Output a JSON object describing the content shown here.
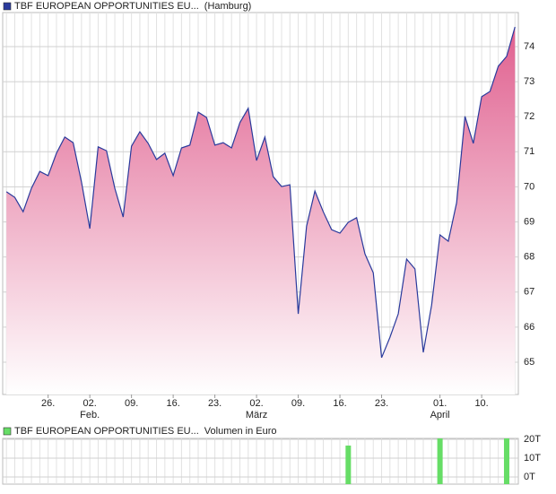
{
  "chart_data": [
    {
      "type": "area",
      "series_name": "TBF EUROPEAN OPPORTUNITIES EU...",
      "subtitle": "(Hamburg)",
      "color": "#2a3a9c",
      "fill_top": "#e0608f",
      "values": [
        69.86,
        69.7,
        69.29,
        69.96,
        70.44,
        70.32,
        70.96,
        71.42,
        71.26,
        70.14,
        68.81,
        71.14,
        71.03,
        69.96,
        69.14,
        71.16,
        71.57,
        71.24,
        70.78,
        70.96,
        70.32,
        71.11,
        71.19,
        72.13,
        71.98,
        71.19,
        71.26,
        71.11,
        71.83,
        72.24,
        70.75,
        71.42,
        70.29,
        70.01,
        70.06,
        66.38,
        68.88,
        69.88,
        69.29,
        68.78,
        68.68,
        68.99,
        69.12,
        68.09,
        67.55,
        65.13,
        65.71,
        66.38,
        67.94,
        67.66,
        65.28,
        66.63,
        68.63,
        68.45,
        69.55,
        72.01,
        71.24,
        72.57,
        72.72,
        73.44,
        73.72,
        74.56
      ],
      "xlim": [
        -0.45,
        61.4
      ],
      "ylim": [
        64.08,
        74.97
      ],
      "yticks": [
        65,
        66,
        67,
        68,
        69,
        70,
        71,
        72,
        73,
        74
      ],
      "xticks": [
        {
          "value": 5,
          "label": "26."
        },
        {
          "value": 10,
          "label": "02.",
          "month": "Feb."
        },
        {
          "value": 15,
          "label": "09."
        },
        {
          "value": 20,
          "label": "16."
        },
        {
          "value": 25,
          "label": "23."
        },
        {
          "value": 30,
          "label": "02.",
          "month": "März"
        },
        {
          "value": 35,
          "label": "09."
        },
        {
          "value": 40,
          "label": "16."
        },
        {
          "value": 45,
          "label": "23."
        },
        {
          "value": 52,
          "label": "01.",
          "month": "April"
        },
        {
          "value": 57,
          "label": "10."
        }
      ],
      "grid": true
    },
    {
      "type": "bar",
      "series_name": "TBF EUROPEAN OPPORTUNITIES EU...",
      "subtitle": "Volumen in Euro",
      "color": "#66dd66",
      "x": [
        41,
        52,
        60
      ],
      "values": [
        16.7,
        20.5,
        20.5
      ],
      "xlim": [
        -0.45,
        61.4
      ],
      "ylim": [
        -3.8,
        20.5
      ],
      "yticks": [
        {
          "value": 0,
          "label": "0T"
        },
        {
          "value": 10,
          "label": "10T"
        },
        {
          "value": 20,
          "label": "20T"
        }
      ],
      "grid": true
    }
  ]
}
